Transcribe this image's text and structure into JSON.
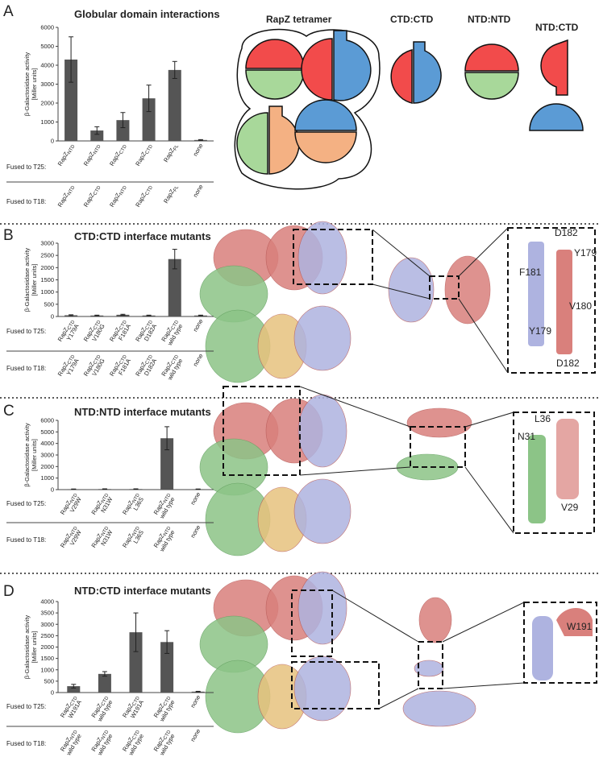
{
  "panels": [
    "A",
    "B",
    "C",
    "D"
  ],
  "diagram": {
    "title": "RapZ tetramer",
    "pairs": [
      "CTD:CTD",
      "NTD:NTD",
      "NTD:CTD"
    ]
  },
  "residue_labels": {
    "B": [
      "D182",
      "Y179",
      "F181",
      "V180",
      "Y179",
      "D182"
    ],
    "C": [
      "L36",
      "N31",
      "V29"
    ],
    "D": [
      "W191"
    ]
  },
  "chart_data": [
    {
      "type": "bar",
      "title": "Globular domain interactions",
      "y_label": [
        "β-Galactosidase activity",
        "[Miller units]"
      ],
      "row_labels": [
        "Fused to T25:",
        "Fused to T18:"
      ],
      "t25_labels": [
        {
          "name": "RapZ",
          "sub": "NTD"
        },
        {
          "name": "RapZ",
          "sub": "NTD"
        },
        {
          "name": "RapZ",
          "sub": "CTD"
        },
        {
          "name": "RapZ",
          "sub": "CTD"
        },
        {
          "name": "RapZ",
          "sub": "FL"
        },
        {
          "name": "none"
        }
      ],
      "t18_labels": [
        {
          "name": "RapZ",
          "sub": "NTD"
        },
        {
          "name": "RapZ",
          "sub": "CTD"
        },
        {
          "name": "RapZ",
          "sub": "NTD"
        },
        {
          "name": "RapZ",
          "sub": "CTD"
        },
        {
          "name": "RapZ",
          "sub": "FL"
        },
        {
          "name": "none"
        }
      ],
      "values": [
        4300,
        550,
        1100,
        2250,
        3750,
        50
      ],
      "errors": [
        1200,
        200,
        400,
        700,
        450,
        20
      ],
      "color": "#555555",
      "ylim": [
        0,
        6000
      ],
      "yticks": [
        0,
        1000,
        2000,
        3000,
        4000,
        5000,
        6000
      ]
    },
    {
      "type": "bar",
      "title": "CTD:CTD interface mutants",
      "y_label": [
        "β-Galactosidase activity",
        "[Miller units]"
      ],
      "row_labels": [
        "Fused to T25:",
        "Fused to T18:"
      ],
      "t25_labels": [
        {
          "name": "RapZ",
          "sub": "CTD",
          "detail": "Y179A"
        },
        {
          "name": "RapZ",
          "sub": "CTD",
          "detail": "V180G"
        },
        {
          "name": "RapZ",
          "sub": "CTD",
          "detail": "F181A"
        },
        {
          "name": "RapZ",
          "sub": "CTD",
          "detail": "D182A"
        },
        {
          "name": "RapZ",
          "sub": "CTD",
          "detail": "wild type"
        },
        {
          "name": "none"
        }
      ],
      "t18_labels": [
        {
          "name": "RapZ",
          "sub": "CTD",
          "detail": "Y179A"
        },
        {
          "name": "RapZ",
          "sub": "CTD",
          "detail": "V180G"
        },
        {
          "name": "RapZ",
          "sub": "CTD",
          "detail": "F181A"
        },
        {
          "name": "RapZ",
          "sub": "CTD",
          "detail": "D182A"
        },
        {
          "name": "RapZ",
          "sub": "CTD",
          "detail": "wild type"
        },
        {
          "name": "none"
        }
      ],
      "values": [
        50,
        40,
        70,
        40,
        2350,
        40
      ],
      "errors": [
        20,
        15,
        20,
        15,
        400,
        15
      ],
      "color": "#555555",
      "ylim": [
        0,
        3000
      ],
      "yticks": [
        0,
        500,
        1000,
        1500,
        2000,
        2500,
        3000
      ]
    },
    {
      "type": "bar",
      "title": "NTD:NTD interface mutants",
      "y_label": [
        "β-Galactosidase activity",
        "[Miller units]"
      ],
      "row_labels": [
        "Fused to T25:",
        "Fused to T18:"
      ],
      "t25_labels": [
        {
          "name": "RapZ",
          "sub": "NTD",
          "detail": "V29W"
        },
        {
          "name": "RapZ",
          "sub": "NTD",
          "detail": "N31W"
        },
        {
          "name": "RapZ",
          "sub": "NTD",
          "detail": "L36S"
        },
        {
          "name": "RapZ",
          "sub": "NTD",
          "detail": "wild type"
        },
        {
          "name": "none"
        }
      ],
      "t18_labels": [
        {
          "name": "RapZ",
          "sub": "NTD",
          "detail": "V29W"
        },
        {
          "name": "RapZ",
          "sub": "NTD",
          "detail": "N31W"
        },
        {
          "name": "RapZ",
          "sub": "NTD",
          "detail": "L36S"
        },
        {
          "name": "RapZ",
          "sub": "NTD",
          "detail": "wild type"
        },
        {
          "name": "none"
        }
      ],
      "values": [
        40,
        50,
        50,
        4450,
        40
      ],
      "errors": [
        15,
        20,
        20,
        1000,
        15
      ],
      "color": "#555555",
      "ylim": [
        0,
        6000
      ],
      "yticks": [
        0,
        1000,
        2000,
        3000,
        4000,
        5000,
        6000
      ]
    },
    {
      "type": "bar",
      "title": "NTD:CTD interface mutants",
      "y_label": [
        "β-Galactosidase activity",
        "[Miller units]"
      ],
      "row_labels": [
        "Fused to T25:",
        "Fused to T18:"
      ],
      "t25_labels": [
        {
          "name": "RapZ",
          "sub": "CTD",
          "detail": "W191A"
        },
        {
          "name": "RapZ",
          "sub": "CTD",
          "detail": "wild type"
        },
        {
          "name": "RapZ",
          "sub": "CTD",
          "detail": "W191A"
        },
        {
          "name": "RapZ",
          "sub": "CTD",
          "detail": "wild type"
        },
        {
          "name": "none"
        }
      ],
      "t18_labels": [
        {
          "name": "RapZ",
          "sub": "NTD",
          "detail": "wild type"
        },
        {
          "name": "RapZ",
          "sub": "NTD",
          "detail": "wild type"
        },
        {
          "name": "RapZ",
          "sub": "CTD",
          "detail": "wild type"
        },
        {
          "name": "RapZ",
          "sub": "CTD",
          "detail": "wild type"
        },
        {
          "name": "none"
        }
      ],
      "values": [
        280,
        820,
        2650,
        2220,
        40
      ],
      "errors": [
        80,
        100,
        850,
        500,
        15
      ],
      "color": "#555555",
      "ylim": [
        0,
        4000
      ],
      "yticks": [
        0,
        500,
        1000,
        1500,
        2000,
        2500,
        3000,
        3500,
        4000
      ]
    }
  ]
}
